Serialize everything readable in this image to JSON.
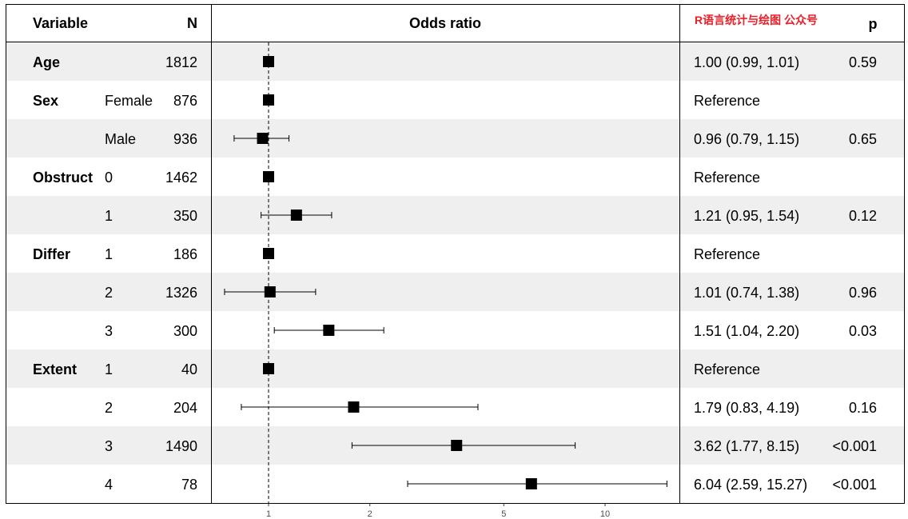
{
  "header": {
    "variable": "Variable",
    "n": "N",
    "odds_ratio": "Odds ratio",
    "watermark": "R语言统计与绘图 公众号",
    "p": "p"
  },
  "colors": {
    "band": "#efefef",
    "marker": "#000000",
    "watermark": "#e8202a",
    "frame": "#000000"
  },
  "chart_data": {
    "type": "forest",
    "x_scale": "log",
    "xlim": [
      0.6,
      16
    ],
    "reference_line": 1,
    "ticks": [
      1,
      2,
      5,
      10
    ],
    "tick_labels": [
      "1",
      "2",
      "5",
      "10"
    ],
    "rows": [
      {
        "group": "Age",
        "level": "",
        "n": "1812",
        "or": 1.0,
        "lo": 0.99,
        "hi": 1.01,
        "ci_text": "1.00 (0.99, 1.01)",
        "p": "0.59",
        "ref": false,
        "shade": true
      },
      {
        "group": "Sex",
        "level": "Female",
        "n": "876",
        "or": 1.0,
        "lo": null,
        "hi": null,
        "ci_text": "Reference",
        "p": "",
        "ref": true,
        "shade": false
      },
      {
        "group": "",
        "level": "Male",
        "n": "936",
        "or": 0.96,
        "lo": 0.79,
        "hi": 1.15,
        "ci_text": "0.96 (0.79, 1.15)",
        "p": "0.65",
        "ref": false,
        "shade": true
      },
      {
        "group": "Obstruct",
        "level": "0",
        "n": "1462",
        "or": 1.0,
        "lo": null,
        "hi": null,
        "ci_text": "Reference",
        "p": "",
        "ref": true,
        "shade": false
      },
      {
        "group": "",
        "level": "1",
        "n": "350",
        "or": 1.21,
        "lo": 0.95,
        "hi": 1.54,
        "ci_text": "1.21 (0.95, 1.54)",
        "p": "0.12",
        "ref": false,
        "shade": true
      },
      {
        "group": "Differ",
        "level": "1",
        "n": "186",
        "or": 1.0,
        "lo": null,
        "hi": null,
        "ci_text": "Reference",
        "p": "",
        "ref": true,
        "shade": false
      },
      {
        "group": "",
        "level": "2",
        "n": "1326",
        "or": 1.01,
        "lo": 0.74,
        "hi": 1.38,
        "ci_text": "1.01 (0.74, 1.38)",
        "p": "0.96",
        "ref": false,
        "shade": true
      },
      {
        "group": "",
        "level": "3",
        "n": "300",
        "or": 1.51,
        "lo": 1.04,
        "hi": 2.2,
        "ci_text": "1.51 (1.04, 2.20)",
        "p": "0.03",
        "ref": false,
        "shade": false
      },
      {
        "group": "Extent",
        "level": "1",
        "n": "40",
        "or": 1.0,
        "lo": null,
        "hi": null,
        "ci_text": "Reference",
        "p": "",
        "ref": true,
        "shade": true
      },
      {
        "group": "",
        "level": "2",
        "n": "204",
        "or": 1.79,
        "lo": 0.83,
        "hi": 4.19,
        "ci_text": "1.79 (0.83, 4.19)",
        "p": "0.16",
        "ref": false,
        "shade": false
      },
      {
        "group": "",
        "level": "3",
        "n": "1490",
        "or": 3.62,
        "lo": 1.77,
        "hi": 8.15,
        "ci_text": "3.62 (1.77, 8.15)",
        "p": "<0.001",
        "ref": false,
        "shade": true
      },
      {
        "group": "",
        "level": "4",
        "n": "78",
        "or": 6.04,
        "lo": 2.59,
        "hi": 15.27,
        "ci_text": "6.04 (2.59, 15.27)",
        "p": "<0.001",
        "ref": false,
        "shade": false
      }
    ]
  }
}
